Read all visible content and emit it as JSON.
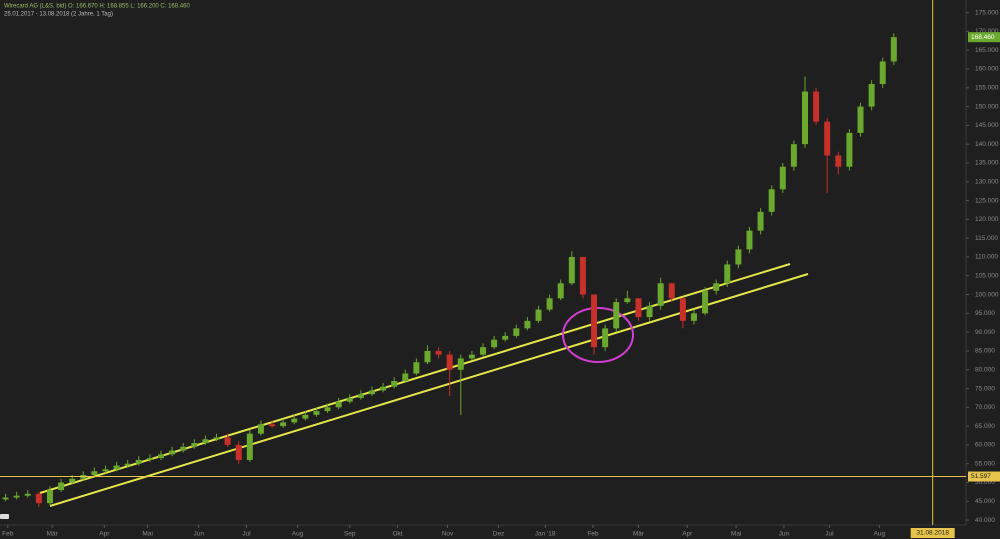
{
  "chart_data": {
    "type": "candlestick",
    "title": "Wirecard AG (L&S, bid)  O: 166.670  H: 168.855  L: 166.200  C: 168.460",
    "subtitle": "25.01.2017 - 13.08.2018  (2 Jahre, 1 Tag)",
    "up_color": "#6aa82e",
    "down_color": "#c8302a",
    "open": [
      45.5,
      46,
      46.5,
      47,
      44.5,
      48,
      50,
      51,
      52,
      53,
      53.5,
      54.5,
      55,
      56,
      56.5,
      57.5,
      58.5,
      59.5,
      60.5,
      61.5,
      62,
      60,
      56,
      63,
      65.5,
      65,
      66,
      67,
      68,
      69,
      70,
      71.5,
      72.5,
      73.5,
      74.5,
      75.5,
      77,
      79,
      82,
      85,
      84,
      80,
      83,
      84,
      86,
      88,
      89,
      91,
      93,
      96,
      99,
      103,
      110,
      100,
      86,
      91,
      98,
      99,
      94,
      97,
      103,
      99,
      93,
      95,
      101,
      103,
      108,
      112,
      117,
      122,
      128,
      134,
      140,
      154,
      146,
      137,
      134,
      143,
      150,
      156,
      162
    ],
    "high": [
      47,
      47.5,
      48,
      47.5,
      49,
      51,
      52,
      53,
      54,
      54.5,
      55.5,
      56,
      57,
      57.5,
      58.5,
      59.5,
      60.5,
      61.5,
      62.5,
      63,
      63,
      61,
      64,
      66.5,
      66.5,
      67,
      68,
      69,
      70,
      71,
      72.5,
      73.5,
      74.5,
      75.5,
      76.5,
      78,
      80,
      83,
      86.5,
      86,
      85,
      84,
      85,
      87,
      89,
      90,
      92,
      94,
      97,
      100,
      104,
      111.5,
      110,
      100,
      92,
      99,
      101,
      99,
      98,
      104.5,
      103,
      99,
      96,
      102,
      104,
      109,
      113,
      118,
      123,
      129,
      135,
      141,
      158,
      155,
      147,
      138,
      144,
      151,
      157,
      163,
      169.5
    ],
    "low": [
      45,
      45.5,
      46,
      43.5,
      44,
      47.5,
      49.5,
      50.5,
      51.5,
      52.5,
      53,
      54,
      54.5,
      55.5,
      56,
      57,
      58,
      59,
      60,
      61,
      59.5,
      55,
      55.5,
      62.5,
      64.5,
      64.5,
      65.5,
      66.5,
      67.5,
      68.5,
      69.5,
      71,
      72,
      73,
      74,
      75,
      76.5,
      78.5,
      81.5,
      83,
      73,
      68,
      82.5,
      83.5,
      85.5,
      87.5,
      88.5,
      90.5,
      92.5,
      95.5,
      98.5,
      102.5,
      99,
      84,
      85,
      90,
      97.5,
      93,
      93,
      96,
      98,
      91,
      92,
      94.5,
      100,
      102,
      107,
      111,
      116,
      121,
      127,
      133,
      139,
      145,
      127,
      132,
      133,
      142,
      149,
      155,
      161
    ],
    "close": [
      46,
      46.5,
      47,
      44.5,
      48,
      50,
      51,
      52,
      53,
      53.5,
      54.5,
      55,
      56,
      56.5,
      57.5,
      58.5,
      59.5,
      60.5,
      61.5,
      62,
      60,
      56,
      63,
      65.5,
      65,
      66,
      67,
      68,
      69,
      70,
      71.5,
      72.5,
      73.5,
      74.5,
      75.5,
      77,
      79,
      82,
      85,
      84,
      80,
      83,
      84,
      86,
      88,
      89,
      91,
      93,
      96,
      99,
      103,
      110,
      100,
      86,
      91,
      98,
      99,
      94,
      97,
      103,
      99,
      93,
      95,
      101,
      103,
      108,
      112,
      117,
      122,
      128,
      134,
      140,
      154,
      146,
      137,
      134,
      143,
      150,
      156,
      162,
      168.46
    ],
    "xlim": [
      -0.5,
      86.5
    ],
    "xticks": [
      {
        "value": 0.2,
        "label": "Feb"
      },
      {
        "value": 4.2,
        "label": "Mär"
      },
      {
        "value": 8.9,
        "label": "Apr"
      },
      {
        "value": 12.8,
        "label": "Mai"
      },
      {
        "value": 17.4,
        "label": "Jun"
      },
      {
        "value": 21.7,
        "label": "Jul"
      },
      {
        "value": 26.3,
        "label": "Aug"
      },
      {
        "value": 31,
        "label": "Sep"
      },
      {
        "value": 35.3,
        "label": "Okt"
      },
      {
        "value": 39.8,
        "label": "Nov"
      },
      {
        "value": 44.4,
        "label": "Dez"
      },
      {
        "value": 48.6,
        "label": "Jan '18"
      },
      {
        "value": 52.9,
        "label": "Feb"
      },
      {
        "value": 57,
        "label": "Mär"
      },
      {
        "value": 61.4,
        "label": "Apr"
      },
      {
        "value": 65.8,
        "label": "Mai"
      },
      {
        "value": 70.1,
        "label": "Jun"
      },
      {
        "value": 74.2,
        "label": "Jul"
      },
      {
        "value": 78.7,
        "label": "Aug"
      }
    ],
    "ylim": [
      38.7,
      178.35
    ],
    "yticks": [
      {
        "value": 40,
        "label": "40.000"
      },
      {
        "value": 45,
        "label": "45.000"
      },
      {
        "value": 50,
        "label": "50.000"
      },
      {
        "value": 55,
        "label": "55.000"
      },
      {
        "value": 60,
        "label": "60.000"
      },
      {
        "value": 65,
        "label": "65.000"
      },
      {
        "value": 70,
        "label": "70.000"
      },
      {
        "value": 75,
        "label": "75.000"
      },
      {
        "value": 80,
        "label": "80.000"
      },
      {
        "value": 85,
        "label": "85.000"
      },
      {
        "value": 90,
        "label": "90.000"
      },
      {
        "value": 95,
        "label": "95.000"
      },
      {
        "value": 100,
        "label": "100.000"
      },
      {
        "value": 105,
        "label": "105.000"
      },
      {
        "value": 110,
        "label": "110.000"
      },
      {
        "value": 115,
        "label": "115.000"
      },
      {
        "value": 120,
        "label": "120.000"
      },
      {
        "value": 125,
        "label": "125.000"
      },
      {
        "value": 130,
        "label": "130.000"
      },
      {
        "value": 135,
        "label": "135.000"
      },
      {
        "value": 140,
        "label": "140.000"
      },
      {
        "value": 145,
        "label": "145.000"
      },
      {
        "value": 150,
        "label": "150.000"
      },
      {
        "value": 155,
        "label": "155.000"
      },
      {
        "value": 160,
        "label": "160.000"
      },
      {
        "value": 165,
        "label": "165.000"
      },
      {
        "value": 170,
        "label": "170.000"
      },
      {
        "value": 175,
        "label": "175.000"
      }
    ],
    "hline": {
      "value": 51.597,
      "label": "51.597"
    },
    "last_price": {
      "value": 168.46,
      "label": "168.460"
    },
    "vline": {
      "value": 83.5,
      "label": "31.08.2018"
    }
  }
}
